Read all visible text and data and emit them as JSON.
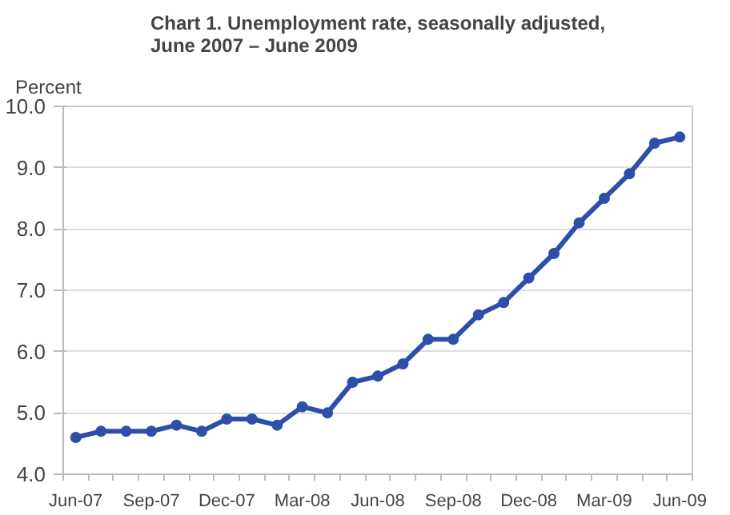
{
  "chart_data": {
    "type": "line",
    "title": "Chart 1. Unemployment rate, seasonally adjusted,\nJune 2007 – June 2009",
    "ylabel": "Percent",
    "categories": [
      "Jun-07",
      null,
      null,
      "Sep-07",
      null,
      null,
      "Dec-07",
      null,
      null,
      "Mar-08",
      null,
      null,
      "Jun-08",
      null,
      null,
      "Sep-08",
      null,
      null,
      "Dec-08",
      null,
      null,
      "Mar-09",
      null,
      null,
      "Jun-09"
    ],
    "series": [
      {
        "color": "#2e4fa8",
        "values": [
          4.6,
          4.7,
          4.7,
          4.7,
          4.8,
          4.7,
          4.9,
          4.9,
          4.8,
          5.1,
          5.0,
          5.5,
          5.6,
          5.8,
          6.2,
          6.2,
          6.6,
          6.8,
          7.2,
          7.6,
          8.1,
          8.5,
          8.9,
          9.4,
          9.5
        ]
      }
    ],
    "ylim": [
      4,
      10
    ],
    "yticks": [
      {
        "value": 4,
        "label": "4.0"
      },
      {
        "value": 5,
        "label": "5.0"
      },
      {
        "value": 6,
        "label": "6.0"
      },
      {
        "value": 7,
        "label": "7.0"
      },
      {
        "value": 8,
        "label": "8.0"
      },
      {
        "value": 9,
        "label": "9.0"
      },
      {
        "value": 10,
        "label": "10.0"
      }
    ],
    "grid": "y",
    "marker": "circle",
    "line_style": "solid"
  }
}
